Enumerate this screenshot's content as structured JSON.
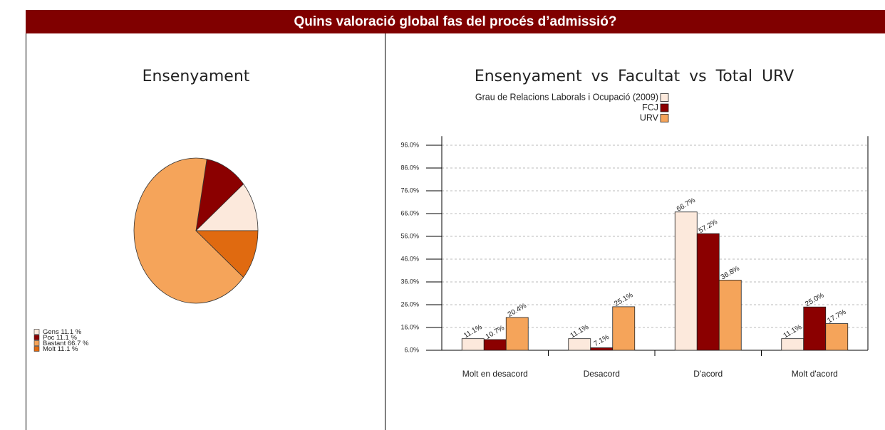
{
  "header": {
    "title": "Quins valoració global fas del procés d’admissió?"
  },
  "chart_data": [
    {
      "type": "pie",
      "title": "Ensenyament",
      "categories": [
        "Gens",
        "Poc",
        "Bastant",
        "Molt"
      ],
      "values": [
        11.1,
        11.1,
        66.7,
        11.1
      ],
      "value_labels": [
        "11.1 %",
        "11.1 %",
        "66.7 %",
        "11.1 %"
      ],
      "colors": [
        "#fce9dc",
        "#8b0000",
        "#f5a45a",
        "#e06a10"
      ]
    },
    {
      "type": "bar",
      "title": "Ensenyament vs Facultat vs Total URV",
      "categories": [
        "Molt en desacord",
        "Desacord",
        "D'acord",
        "Molt d'acord"
      ],
      "series": [
        {
          "name": "Grau de Relacions Laborals i Ocupació (2009)",
          "color": "#fce9dc",
          "values": [
            11.1,
            11.1,
            66.7,
            11.1
          ],
          "value_labels": [
            "11.1%",
            "11.1%",
            "66.7%",
            "11.1%"
          ]
        },
        {
          "name": "FCJ",
          "color": "#8b0000",
          "values": [
            10.7,
            7.1,
            57.2,
            25.0
          ],
          "value_labels": [
            "10.7%",
            "7.1%",
            "57.2%",
            "25.0%"
          ]
        },
        {
          "name": "URV",
          "color": "#f5a45a",
          "values": [
            20.4,
            25.1,
            36.8,
            17.7
          ],
          "value_labels": [
            "20.4%",
            "25.1%",
            "36.8%",
            "17.7%"
          ]
        }
      ],
      "ylim": [
        6,
        100
      ],
      "yticks": [
        {
          "value": 6,
          "label": "6.0%"
        },
        {
          "value": 16,
          "label": "16.0%"
        },
        {
          "value": 26,
          "label": "26.0%"
        },
        {
          "value": 36,
          "label": "36.0%"
        },
        {
          "value": 46,
          "label": "46.0%"
        },
        {
          "value": 56,
          "label": "56.0%"
        },
        {
          "value": 66,
          "label": "66.0%"
        },
        {
          "value": 76,
          "label": "76.0%"
        },
        {
          "value": 86,
          "label": "86.0%"
        },
        {
          "value": 96,
          "label": "96.0%"
        }
      ],
      "grid": true
    }
  ]
}
